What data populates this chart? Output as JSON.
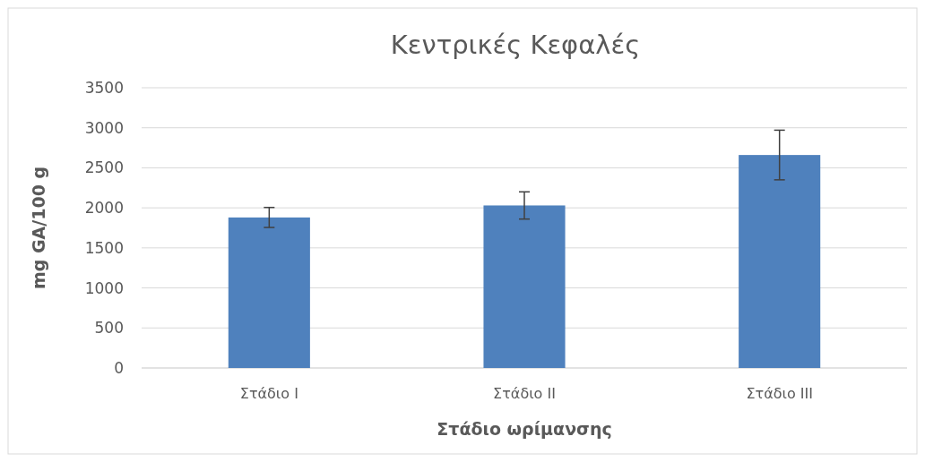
{
  "chart_data": {
    "type": "bar",
    "title": "Κεντρικές Κεφαλές",
    "xlabel": "Στάδιο ωρίμανσης",
    "ylabel": "mg GA/100 g",
    "categories": [
      "Στάδιο I",
      "Στάδιο II",
      "Στάδιο III"
    ],
    "values": [
      1880,
      2030,
      2660
    ],
    "errors": [
      125,
      170,
      310
    ],
    "color": "#4f81bd",
    "ylim": [
      0,
      3500
    ],
    "yticks": [
      0,
      500,
      1000,
      1500,
      2000,
      2500,
      3000,
      3500
    ],
    "grid": "y"
  }
}
